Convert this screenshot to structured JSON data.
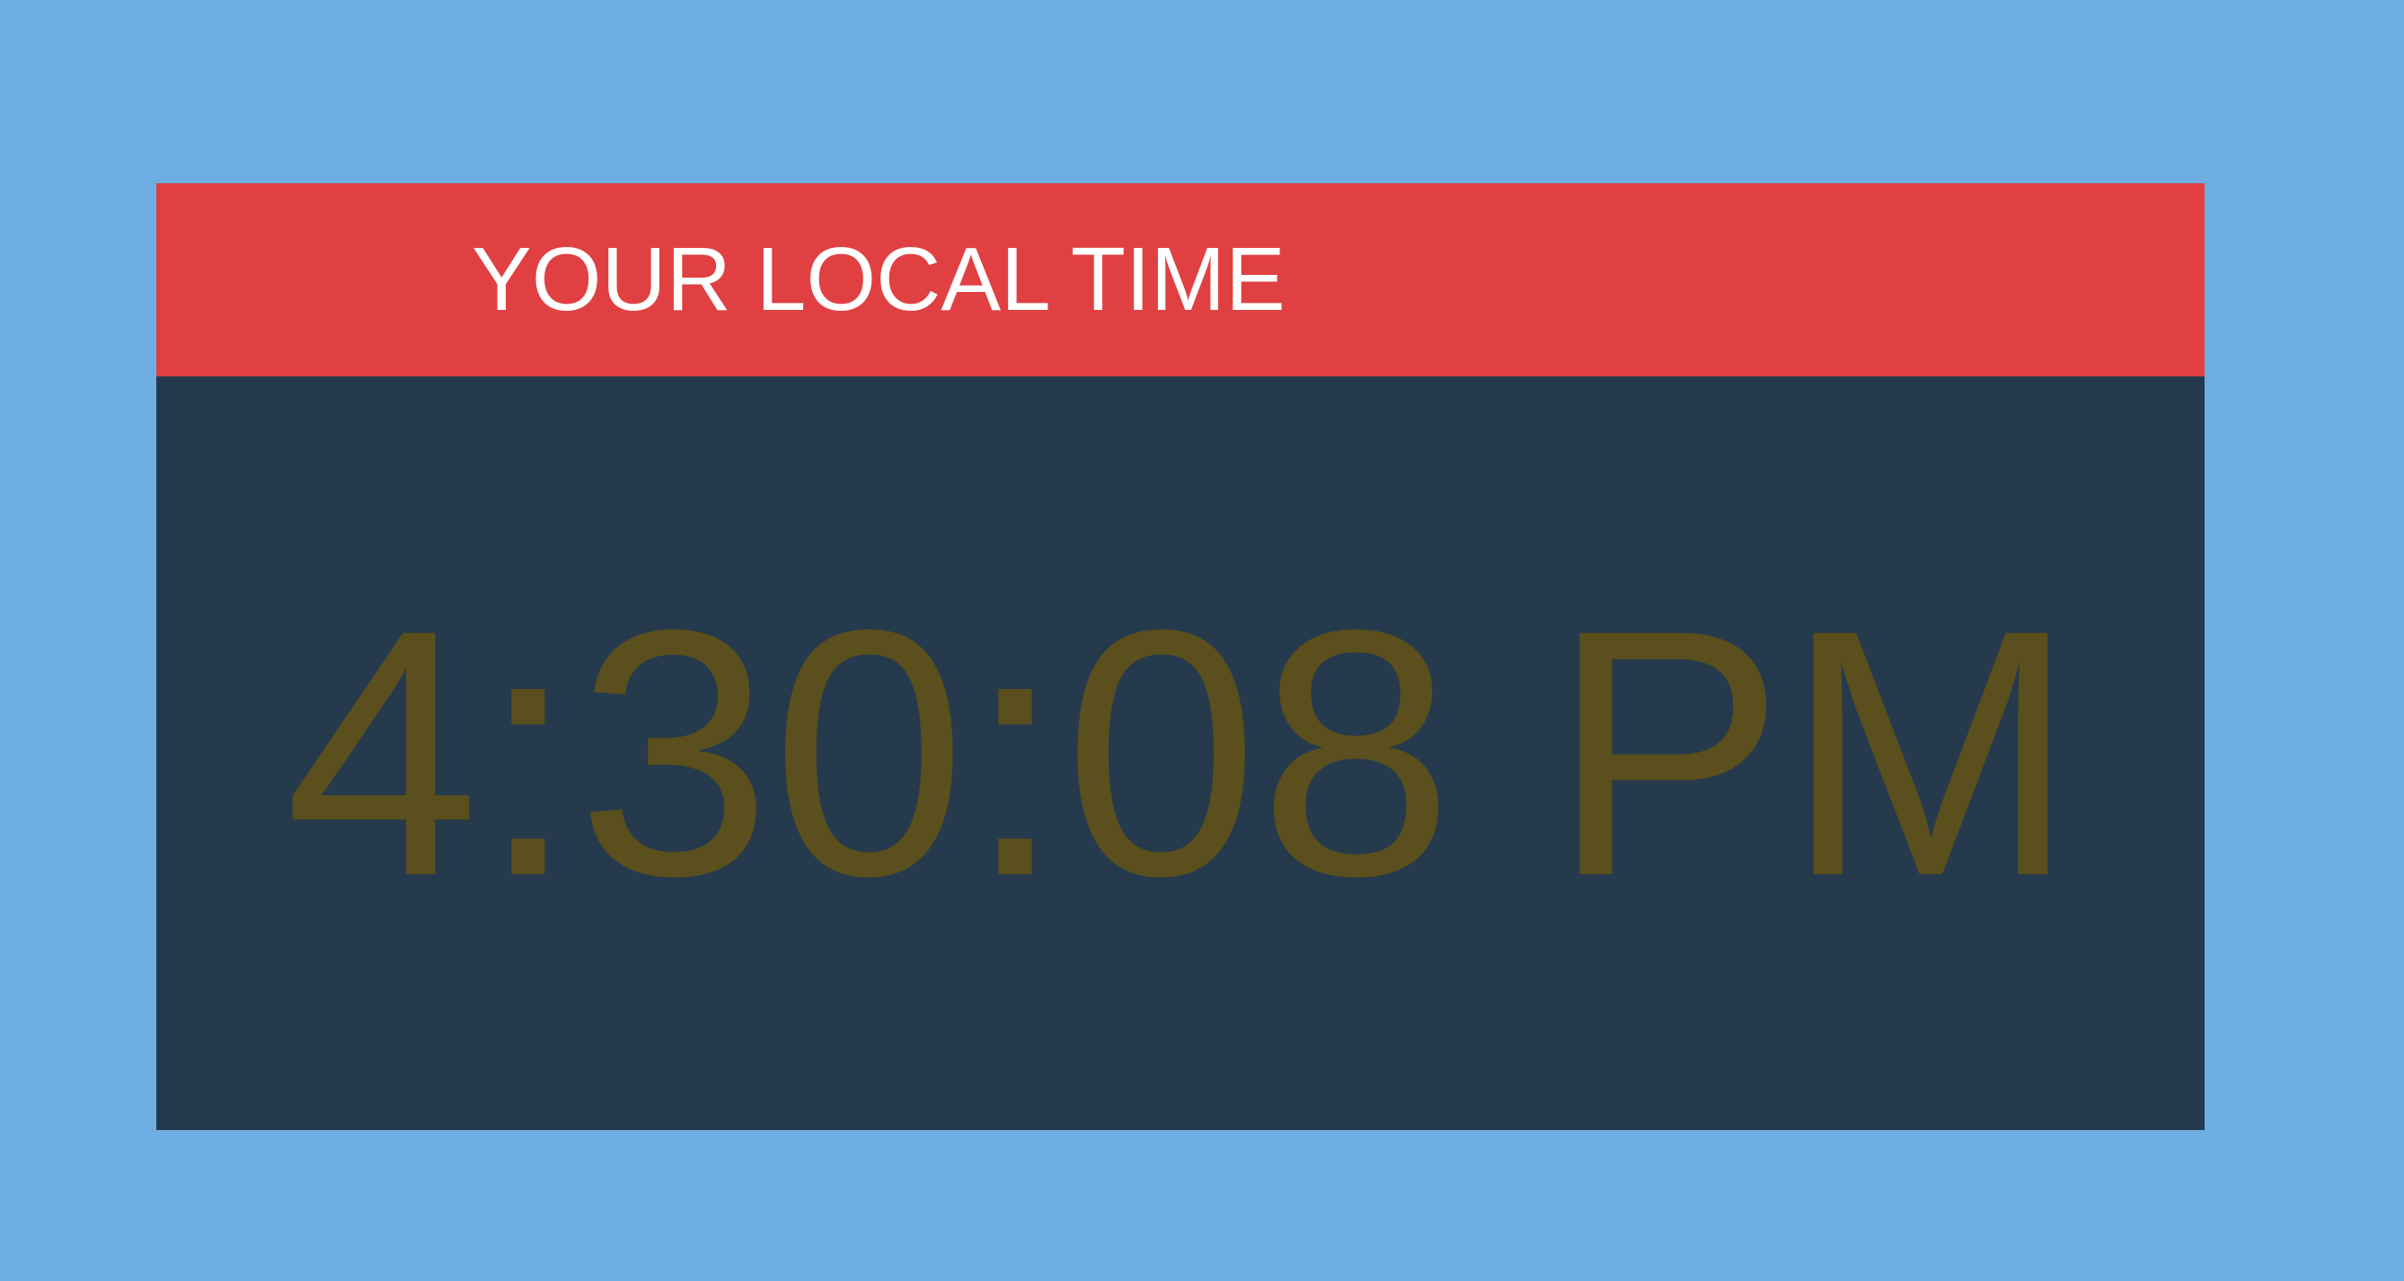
{
  "clock": {
    "header_title": "YOUR LOCAL TIME",
    "time": "4:30:08 PM"
  },
  "colors": {
    "page_background": "#6faee2",
    "header_background": "#e14042",
    "header_text": "#ffffff",
    "body_background": "#253a4c",
    "time_text": "#5a4f1d"
  }
}
